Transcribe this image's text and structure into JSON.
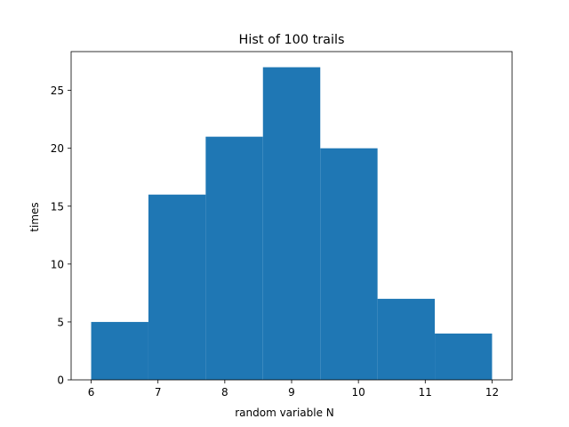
{
  "chart_data": {
    "type": "bar",
    "title": "Hist of 100 trails",
    "xlabel": "random variable N",
    "ylabel": "times",
    "bins": [
      {
        "x0": 6.0,
        "x1": 6.857,
        "count": 5
      },
      {
        "x0": 6.857,
        "x1": 7.714,
        "count": 16
      },
      {
        "x0": 7.714,
        "x1": 8.571,
        "count": 21
      },
      {
        "x0": 8.571,
        "x1": 9.429,
        "count": 27
      },
      {
        "x0": 9.429,
        "x1": 10.286,
        "count": 20
      },
      {
        "x0": 10.286,
        "x1": 11.143,
        "count": 7
      },
      {
        "x0": 11.143,
        "x1": 12.0,
        "count": 4
      }
    ],
    "xlim": [
      5.7,
      12.3
    ],
    "ylim": [
      0,
      28.35
    ],
    "xticks": [
      6,
      7,
      8,
      9,
      10,
      11,
      12
    ],
    "yticks": [
      0,
      5,
      10,
      15,
      20,
      25
    ],
    "bar_color": "#1f77b4",
    "grid": false
  }
}
